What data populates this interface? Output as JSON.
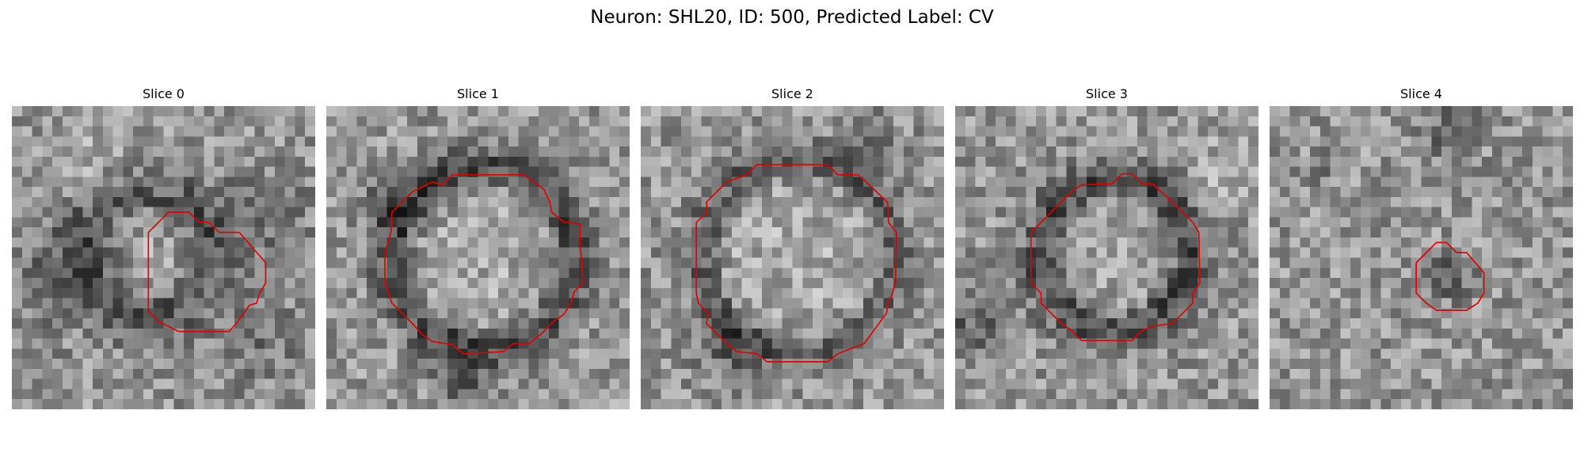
{
  "figure": {
    "title": "Neuron: SHL20, ID: 500, Predicted Label: CV"
  },
  "panels": [
    {
      "title": "Slice 0",
      "seed": 11,
      "outline_color": "#e00000"
    },
    {
      "title": "Slice 1",
      "seed": 23,
      "outline_color": "#e00000"
    },
    {
      "title": "Slice 2",
      "seed": 37,
      "outline_color": "#e00000"
    },
    {
      "title": "Slice 3",
      "seed": 51,
      "outline_color": "#e00000"
    },
    {
      "title": "Slice 4",
      "seed": 67,
      "outline_color": "#e00000"
    }
  ],
  "colormap": "gray"
}
